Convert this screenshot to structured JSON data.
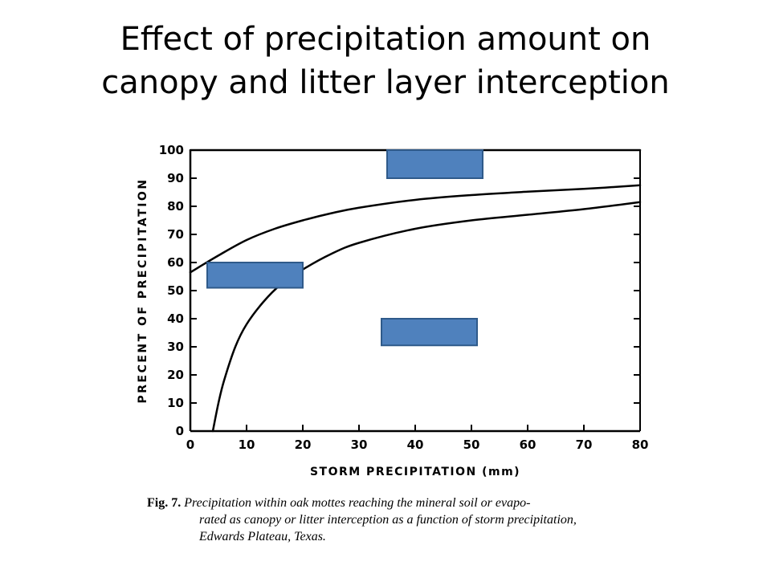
{
  "slide": {
    "title_lines": [
      "Effect of precipitation amount on",
      "canopy and litter layer interception"
    ]
  },
  "caption": {
    "label": "Fig. 7.",
    "lines": [
      "Precipitation within oak mottes reaching the mineral soil or evapo-",
      "rated as canopy or litter interception as a function of storm precipitation,",
      "Edwards Plateau, Texas."
    ]
  },
  "chart_data": {
    "type": "line",
    "xlabel": "STORM PRECIPITATION (mm)",
    "ylabel": "PRECENT OF PRECIPITATION",
    "xlim": [
      0,
      80
    ],
    "ylim": [
      0,
      100
    ],
    "x_ticks": [
      0,
      10,
      20,
      30,
      40,
      50,
      60,
      70,
      80
    ],
    "y_ticks": [
      0,
      10,
      20,
      30,
      40,
      50,
      60,
      70,
      80,
      90,
      100
    ],
    "grid": false,
    "series": [
      {
        "x": [
          0,
          5,
          10,
          15,
          20,
          25,
          30,
          40,
          50,
          60,
          70,
          80
        ],
        "values": [
          56.5,
          62.5,
          68,
          72,
          75,
          77.5,
          79.5,
          82.3,
          84,
          85.2,
          86.2,
          87.5
        ]
      },
      {
        "x": [
          4,
          5,
          6,
          8,
          10,
          13,
          16,
          20,
          25,
          30,
          40,
          50,
          60,
          70,
          80
        ],
        "values": [
          0,
          10,
          18,
          30,
          38,
          46,
          52,
          57.5,
          63,
          67,
          72,
          75,
          77,
          79,
          81.5
        ]
      },
      {
        "x": [
          0,
          80
        ],
        "values": [
          100,
          100
        ]
      }
    ],
    "annotation_boxes": [
      {
        "x": [
          35,
          52
        ],
        "y": [
          90,
          100
        ],
        "color": "#4f81bd",
        "text": ""
      },
      {
        "x": [
          3,
          20
        ],
        "y": [
          51,
          60
        ],
        "color": "#4f81bd",
        "text": ""
      },
      {
        "x": [
          34,
          51
        ],
        "y": [
          30.5,
          40
        ],
        "color": "#4f81bd",
        "text": ""
      }
    ]
  }
}
